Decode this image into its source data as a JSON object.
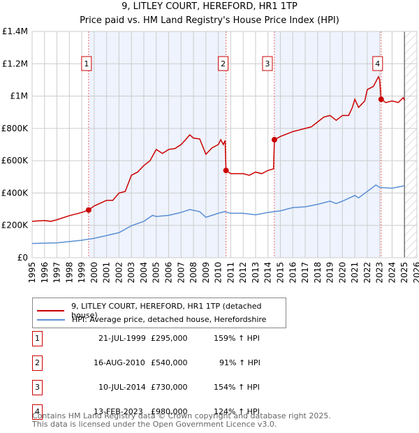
{
  "header": {
    "title": "9, LITLEY COURT, HEREFORD, HR1 1TP",
    "subtitle": "Price paid vs. HM Land Registry's House Price Index (HPI)"
  },
  "chart_data": {
    "type": "line",
    "title": "9, LITLEY COURT, HEREFORD, HR1 1TP",
    "ylim": [
      0,
      1400000
    ],
    "xlim": [
      1995,
      2026
    ],
    "y_ticks": [
      {
        "v": 0,
        "label": "£0"
      },
      {
        "v": 200000,
        "label": "£200K"
      },
      {
        "v": 400000,
        "label": "£400K"
      },
      {
        "v": 600000,
        "label": "£600K"
      },
      {
        "v": 800000,
        "label": "£800K"
      },
      {
        "v": 1000000,
        "label": "£1M"
      },
      {
        "v": 1200000,
        "label": "£1.2M"
      },
      {
        "v": 1400000,
        "label": "£1.4M"
      }
    ],
    "x_ticks": [
      "1995",
      "1996",
      "1997",
      "1998",
      "1999",
      "2000",
      "2001",
      "2002",
      "2003",
      "2004",
      "2005",
      "2006",
      "2007",
      "2008",
      "2009",
      "2010",
      "2011",
      "2012",
      "2013",
      "2014",
      "2015",
      "2016",
      "2017",
      "2018",
      "2019",
      "2020",
      "2021",
      "2022",
      "2023",
      "2024",
      "2025",
      "2026"
    ],
    "series": [
      {
        "name": "9, LITLEY COURT, HEREFORD, HR1 1TP (detached house)",
        "color": "#cc0000",
        "points": [
          [
            1995,
            225000
          ],
          [
            1996,
            230000
          ],
          [
            1996.5,
            225000
          ],
          [
            1997,
            235000
          ],
          [
            1998,
            260000
          ],
          [
            1999,
            280000
          ],
          [
            1999.55,
            295000
          ],
          [
            2000,
            320000
          ],
          [
            2001,
            355000
          ],
          [
            2001.5,
            355000
          ],
          [
            2002,
            400000
          ],
          [
            2002.5,
            410000
          ],
          [
            2003,
            510000
          ],
          [
            2003.5,
            530000
          ],
          [
            2004,
            570000
          ],
          [
            2004.5,
            600000
          ],
          [
            2005,
            670000
          ],
          [
            2005.5,
            645000
          ],
          [
            2006,
            670000
          ],
          [
            2006.5,
            675000
          ],
          [
            2007,
            700000
          ],
          [
            2007.3,
            725000
          ],
          [
            2007.7,
            760000
          ],
          [
            2008,
            740000
          ],
          [
            2008.5,
            735000
          ],
          [
            2009,
            640000
          ],
          [
            2009.5,
            680000
          ],
          [
            2010,
            700000
          ],
          [
            2010.2,
            730000
          ],
          [
            2010.4,
            700000
          ],
          [
            2010.55,
            725000
          ],
          [
            2010.62,
            540000
          ],
          [
            2011,
            520000
          ],
          [
            2012,
            520000
          ],
          [
            2012.5,
            510000
          ],
          [
            2013,
            530000
          ],
          [
            2013.5,
            520000
          ],
          [
            2014,
            540000
          ],
          [
            2014.45,
            550000
          ],
          [
            2014.52,
            730000
          ],
          [
            2015,
            750000
          ],
          [
            2016,
            780000
          ],
          [
            2016.5,
            790000
          ],
          [
            2017,
            800000
          ],
          [
            2017.5,
            810000
          ],
          [
            2018,
            840000
          ],
          [
            2018.5,
            870000
          ],
          [
            2019,
            880000
          ],
          [
            2019.5,
            850000
          ],
          [
            2020,
            880000
          ],
          [
            2020.5,
            880000
          ],
          [
            2020.8,
            930000
          ],
          [
            2021,
            980000
          ],
          [
            2021.3,
            930000
          ],
          [
            2021.8,
            970000
          ],
          [
            2022,
            1040000
          ],
          [
            2022.5,
            1060000
          ],
          [
            2022.9,
            1120000
          ],
          [
            2023.0,
            1100000
          ],
          [
            2023.12,
            980000
          ],
          [
            2023.5,
            960000
          ],
          [
            2024,
            970000
          ],
          [
            2024.5,
            960000
          ],
          [
            2024.9,
            990000
          ],
          [
            2025,
            975000
          ]
        ]
      },
      {
        "name": "HPI: Average price, detached house, Herefordshire",
        "color": "#5b8fd4",
        "points": [
          [
            1995,
            88000
          ],
          [
            1996,
            90000
          ],
          [
            1997,
            92000
          ],
          [
            1998,
            100000
          ],
          [
            1999,
            108000
          ],
          [
            2000,
            120000
          ],
          [
            2001,
            137000
          ],
          [
            2002,
            155000
          ],
          [
            2003,
            198000
          ],
          [
            2004,
            225000
          ],
          [
            2004.7,
            262000
          ],
          [
            2005,
            255000
          ],
          [
            2006,
            262000
          ],
          [
            2007,
            280000
          ],
          [
            2007.7,
            298000
          ],
          [
            2008.5,
            285000
          ],
          [
            2009,
            250000
          ],
          [
            2010,
            275000
          ],
          [
            2010.5,
            285000
          ],
          [
            2011,
            275000
          ],
          [
            2012,
            275000
          ],
          [
            2013,
            265000
          ],
          [
            2014,
            280000
          ],
          [
            2015,
            290000
          ],
          [
            2016,
            310000
          ],
          [
            2017,
            315000
          ],
          [
            2018,
            330000
          ],
          [
            2019,
            350000
          ],
          [
            2019.5,
            335000
          ],
          [
            2020,
            350000
          ],
          [
            2021,
            385000
          ],
          [
            2021.3,
            370000
          ],
          [
            2022,
            410000
          ],
          [
            2022.7,
            450000
          ],
          [
            2023,
            435000
          ],
          [
            2024,
            430000
          ],
          [
            2025,
            445000
          ]
        ]
      }
    ],
    "sales": [
      {
        "n": "1",
        "x": 1999.55,
        "price": 295000,
        "date": "21-JUL-1999",
        "price_label": "£295,000",
        "hpi": "159% ↑ HPI"
      },
      {
        "n": "2",
        "x": 2010.62,
        "price": 540000,
        "date": "16-AUG-2010",
        "price_label": "£540,000",
        "hpi": "91% ↑ HPI"
      },
      {
        "n": "3",
        "x": 2014.52,
        "price": 730000,
        "date": "10-JUL-2014",
        "price_label": "£730,000",
        "hpi": "154% ↑ HPI"
      },
      {
        "n": "4",
        "x": 2023.12,
        "price": 980000,
        "date": "13-FEB-2023",
        "price_label": "£980,000",
        "hpi": "124% ↑ HPI"
      }
    ],
    "shaded_ranges": [
      [
        1999.55,
        2010.62
      ],
      [
        2014.52,
        2023.12
      ]
    ],
    "hatched_from": 2025
  },
  "legend": {
    "red": "9, LITLEY COURT, HEREFORD, HR1 1TP (detached house)",
    "blue": "HPI: Average price, detached house, Herefordshire"
  },
  "footer": {
    "line1": "Contains HM Land Registry data © Crown copyright and database right 2025.",
    "line2": "This data is licensed under the Open Government Licence v3.0."
  }
}
